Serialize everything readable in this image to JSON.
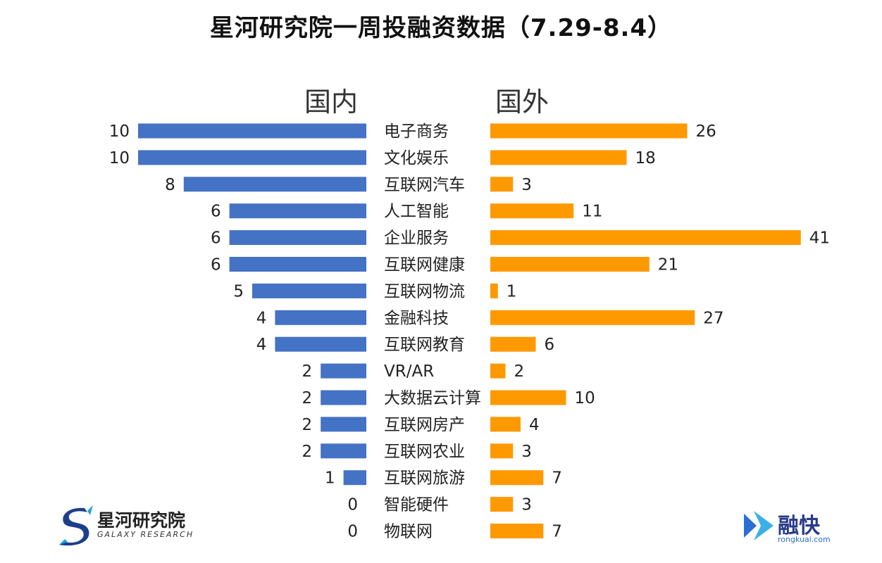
{
  "title": "星河研究院一周投融资数据（7.29-8.4）",
  "colors": {
    "domestic": "#4472C4",
    "foreign": "#FF9900"
  },
  "chart_data": {
    "type": "bar",
    "orientation": "horizontal-butterfly",
    "categories": [
      "电子商务",
      "文化娱乐",
      "互联网汽车",
      "人工智能",
      "企业服务",
      "互联网健康",
      "互联网物流",
      "金融科技",
      "互联网教育",
      "VR/AR",
      "大数据云计算",
      "互联网房产",
      "互联网农业",
      "互联网旅游",
      "智能硬件",
      "物联网"
    ],
    "series": [
      {
        "name": "国内",
        "values": [
          10,
          10,
          8,
          6,
          6,
          6,
          5,
          4,
          4,
          2,
          2,
          2,
          2,
          1,
          0,
          0
        ]
      },
      {
        "name": "国外",
        "values": [
          26,
          18,
          3,
          11,
          41,
          21,
          1,
          27,
          6,
          2,
          10,
          4,
          3,
          7,
          3,
          7
        ]
      }
    ],
    "title": "星河研究院一周投融资数据（7.29-8.4）",
    "grid": false
  },
  "logos": {
    "left": {
      "name": "星河研究院",
      "sub": "GALAXY RESEARCH"
    },
    "right": {
      "name": "融快",
      "sub": "rongkuai.com"
    }
  }
}
